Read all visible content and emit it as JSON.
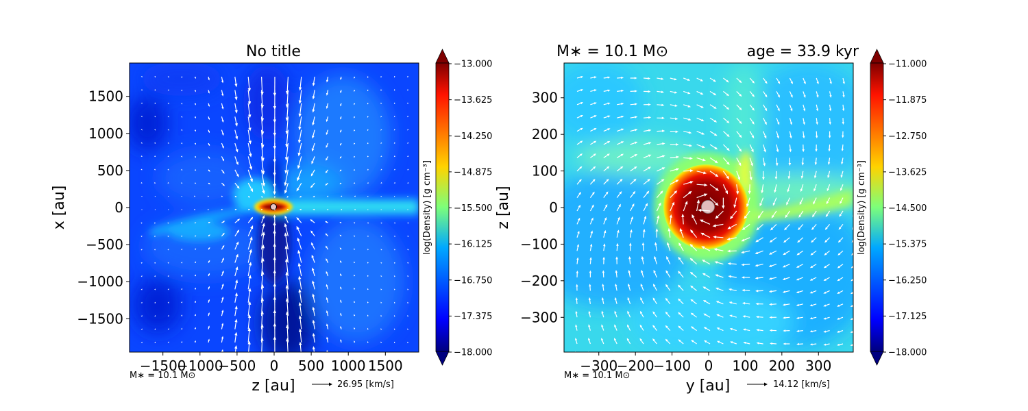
{
  "chart_data": [
    {
      "type": "heatmap",
      "title": "No title",
      "xlabel": "z [au]",
      "ylabel": "x [au]",
      "xlim": [
        -1950,
        1950
      ],
      "ylim": [
        -1950,
        1950
      ],
      "xticks": [
        -1500,
        -1000,
        -500,
        0,
        500,
        1000,
        1500
      ],
      "xtick_labels": [
        "−1500",
        "−1000",
        "−500",
        "0",
        "500",
        "1000",
        "1500"
      ],
      "yticks": [
        -1500,
        -1000,
        -500,
        0,
        500,
        1000,
        1500
      ],
      "ytick_labels": [
        "−1500",
        "−1000",
        "−500",
        "0",
        "500",
        "1000",
        "1500"
      ],
      "colorbar": {
        "label": "log(Density) [g cm⁻³]",
        "range": [
          -18.0,
          -13.0
        ],
        "ticks": [
          -13.0,
          -13.625,
          -14.25,
          -14.875,
          -15.5,
          -16.125,
          -16.75,
          -17.375,
          -18.0
        ],
        "tick_labels": [
          "−13.000",
          "−13.625",
          "−14.250",
          "−14.875",
          "−15.500",
          "−16.125",
          "−16.750",
          "−17.375",
          "−18.000"
        ]
      },
      "mass_label": "M∗ = 10.1 M⊙",
      "quiver_key": "26.95 [km/s]",
      "colormap": "jet",
      "vectors": "velocity field, white arrows"
    },
    {
      "type": "heatmap",
      "title_left": "M∗ = 10.1 M⊙",
      "title_right": "age = 33.9 kyr",
      "xlabel": "y [au]",
      "ylabel": "z [au]",
      "xlim": [
        -395,
        395
      ],
      "ylim": [
        -395,
        395
      ],
      "xticks": [
        -300,
        -200,
        -100,
        0,
        100,
        200,
        300
      ],
      "xtick_labels": [
        "−300",
        "−200",
        "−100",
        "0",
        "100",
        "200",
        "300"
      ],
      "yticks": [
        -300,
        -200,
        -100,
        0,
        100,
        200,
        300
      ],
      "ytick_labels": [
        "−300",
        "−200",
        "−100",
        "0",
        "100",
        "200",
        "300"
      ],
      "colorbar": {
        "label": "log(Density) [g cm⁻³]",
        "range": [
          -18.0,
          -11.0
        ],
        "ticks": [
          -11.0,
          -11.875,
          -12.75,
          -13.625,
          -14.5,
          -15.375,
          -16.25,
          -17.125,
          -18.0
        ],
        "tick_labels": [
          "−11.000",
          "−11.875",
          "−12.750",
          "−13.625",
          "−14.500",
          "−15.375",
          "−16.250",
          "−17.125",
          "−18.000"
        ]
      },
      "mass_label": "M∗ = 10.1 M⊙",
      "quiver_key": "14.12 [km/s]",
      "colormap": "jet",
      "vectors": "velocity field, white arrows"
    }
  ]
}
